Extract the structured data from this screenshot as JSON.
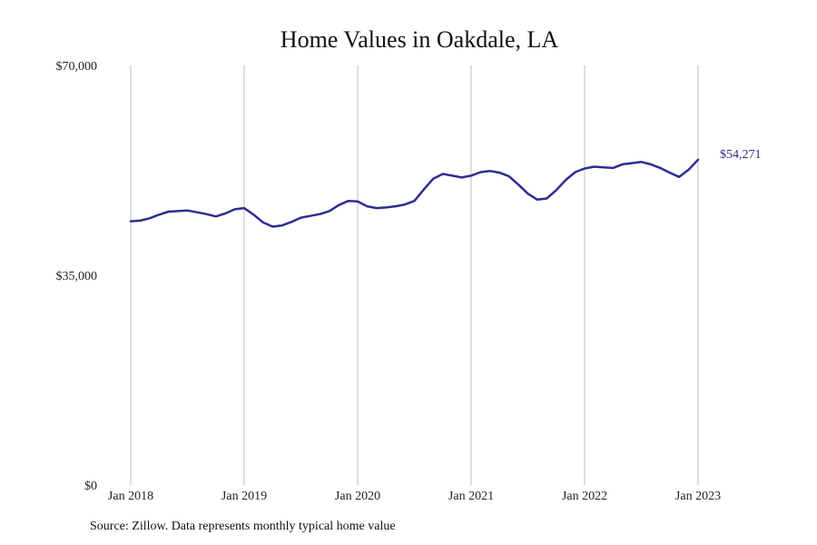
{
  "source_note": "Source: Zillow. Data represents monthly typical home value",
  "colors": {
    "line": "#2e2d8f",
    "grid": "#bdbdbd",
    "text": "#222222"
  },
  "chart_data": {
    "type": "line",
    "title": "Home Values in Oakdale, LA",
    "xlabel": "",
    "ylabel": "",
    "x_ticks": [
      "Jan 2018",
      "Jan 2019",
      "Jan 2020",
      "Jan 2021",
      "Jan 2022",
      "Jan 2023"
    ],
    "y_ticks": [
      "$70,000",
      "$35,000",
      "$0"
    ],
    "ylim": [
      0,
      70000
    ],
    "grid": "vertical",
    "end_label": "$54,271",
    "series": [
      {
        "name": "",
        "points": [
          [
            "2018-01",
            44000
          ],
          [
            "2018-02",
            44100
          ],
          [
            "2018-03",
            44500
          ],
          [
            "2018-04",
            45100
          ],
          [
            "2018-05",
            45600
          ],
          [
            "2018-06",
            45700
          ],
          [
            "2018-07",
            45800
          ],
          [
            "2018-08",
            45500
          ],
          [
            "2018-09",
            45200
          ],
          [
            "2018-10",
            44800
          ],
          [
            "2018-11",
            45300
          ],
          [
            "2018-12",
            46000
          ],
          [
            "2019-01",
            46200
          ],
          [
            "2019-02",
            45100
          ],
          [
            "2019-03",
            43800
          ],
          [
            "2019-04",
            43100
          ],
          [
            "2019-05",
            43300
          ],
          [
            "2019-06",
            43900
          ],
          [
            "2019-07",
            44600
          ],
          [
            "2019-08",
            44900
          ],
          [
            "2019-09",
            45200
          ],
          [
            "2019-10",
            45700
          ],
          [
            "2019-11",
            46700
          ],
          [
            "2019-12",
            47400
          ],
          [
            "2020-01",
            47300
          ],
          [
            "2020-02",
            46500
          ],
          [
            "2020-03",
            46200
          ],
          [
            "2020-04",
            46300
          ],
          [
            "2020-05",
            46500
          ],
          [
            "2020-06",
            46800
          ],
          [
            "2020-07",
            47400
          ],
          [
            "2020-08",
            49300
          ],
          [
            "2020-09",
            51100
          ],
          [
            "2020-10",
            51900
          ],
          [
            "2020-11",
            51600
          ],
          [
            "2020-12",
            51300
          ],
          [
            "2021-01",
            51600
          ],
          [
            "2021-02",
            52200
          ],
          [
            "2021-03",
            52400
          ],
          [
            "2021-04",
            52100
          ],
          [
            "2021-05",
            51500
          ],
          [
            "2021-06",
            50100
          ],
          [
            "2021-07",
            48600
          ],
          [
            "2021-08",
            47600
          ],
          [
            "2021-09",
            47800
          ],
          [
            "2021-10",
            49200
          ],
          [
            "2021-11",
            50900
          ],
          [
            "2021-12",
            52200
          ],
          [
            "2022-01",
            52800
          ],
          [
            "2022-02",
            53100
          ],
          [
            "2022-03",
            53000
          ],
          [
            "2022-04",
            52900
          ],
          [
            "2022-05",
            53500
          ],
          [
            "2022-06",
            53700
          ],
          [
            "2022-07",
            53900
          ],
          [
            "2022-08",
            53500
          ],
          [
            "2022-09",
            52900
          ],
          [
            "2022-10",
            52100
          ],
          [
            "2022-11",
            51400
          ],
          [
            "2022-12",
            52600
          ],
          [
            "2023-01",
            54271
          ]
        ]
      }
    ]
  }
}
